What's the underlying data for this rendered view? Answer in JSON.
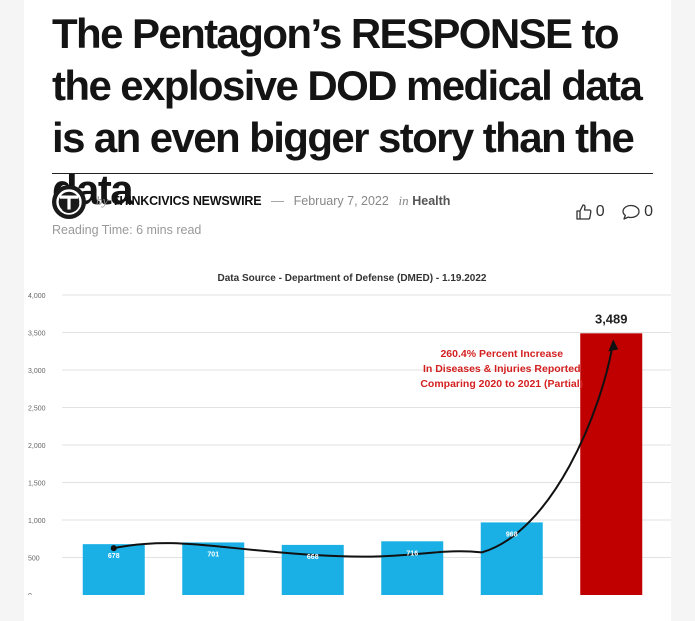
{
  "article": {
    "title": "The Pentagon’s RESPONSE to the explosive DOD medical data is an even bigger story than the data",
    "byline": {
      "by": "by",
      "author": "THINKCIVICS NEWSWIRE",
      "dash": "—",
      "date": "February 7, 2022",
      "in": "in",
      "category": "Health",
      "reading_time": "Reading Time: 6 mins read"
    },
    "counts": {
      "likes": "0",
      "comments": "0"
    }
  },
  "icons": {
    "logo": "thinkcivics-logo-icon",
    "like": "thumbs-up-icon",
    "comment": "speech-bubble-icon"
  },
  "colors": {
    "bar_blue": "#1ab0e6",
    "bar_red": "#c00000",
    "annotation_red": "#d42020"
  },
  "chart_data": {
    "type": "bar",
    "title": "Data Source - Department of Defense (DMED) - 1.19.2022",
    "categories": [
      "",
      "",
      "",
      "",
      "",
      ""
    ],
    "values": [
      678,
      701,
      668,
      716,
      968,
      3489
    ],
    "data_labels": [
      "678",
      "701",
      "668",
      "716",
      "968",
      "3,489"
    ],
    "yticks": [
      {
        "value": 0,
        "label": "0"
      },
      {
        "value": 500,
        "label": "500"
      },
      {
        "value": 1000,
        "label": "1,000"
      },
      {
        "value": 1500,
        "label": "1,500"
      },
      {
        "value": 2000,
        "label": "2,000"
      },
      {
        "value": 2500,
        "label": "2,500"
      },
      {
        "value": 3000,
        "label": "3,000"
      },
      {
        "value": 3500,
        "label": "3,500"
      },
      {
        "value": 4000,
        "label": "4,000"
      }
    ],
    "ylim": [
      0,
      4000
    ],
    "grid": true,
    "annotation": {
      "lines": [
        "260.4% Percent Increase",
        "In Diseases & Injuries Reported",
        "Comparing 2020 to 2021 (Partial)"
      ]
    },
    "trend_curve": true
  }
}
